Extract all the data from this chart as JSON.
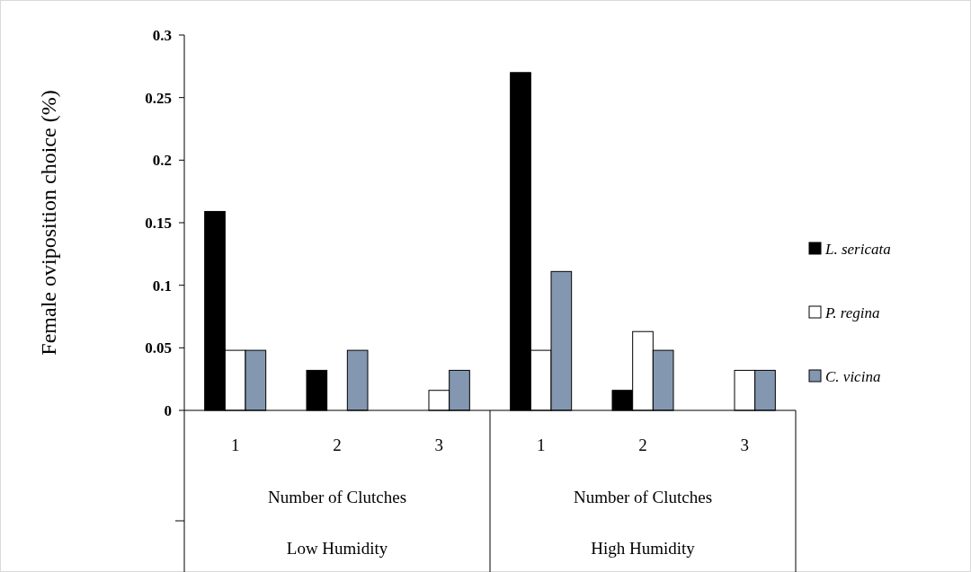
{
  "chart_data": {
    "type": "bar",
    "ylabel": "Female oviposition choice (%)",
    "categories": [
      "1",
      "2",
      "3",
      "1",
      "2",
      "3"
    ],
    "series": [
      {
        "name": "L. sericata",
        "color": "#000000",
        "values": [
          0.159,
          0.032,
          0,
          0.27,
          0.016,
          0
        ]
      },
      {
        "name": "P. regina",
        "color": "#ffffff",
        "values": [
          0.048,
          0,
          0.016,
          0.048,
          0.063,
          0.032
        ]
      },
      {
        "name": "C. vicina",
        "color": "#8497b0",
        "values": [
          0.048,
          0.048,
          0.032,
          0.111,
          0.048,
          0.032
        ]
      }
    ],
    "ylim": [
      0,
      0.3
    ],
    "yticks": [
      0,
      0.05,
      0.1,
      0.15,
      0.2,
      0.25,
      0.3
    ],
    "annotations": [
      "Number of Clutches",
      "Number of Clutches",
      "Low Humidity",
      "High Humidity"
    ],
    "legend": "right",
    "grid": false
  }
}
